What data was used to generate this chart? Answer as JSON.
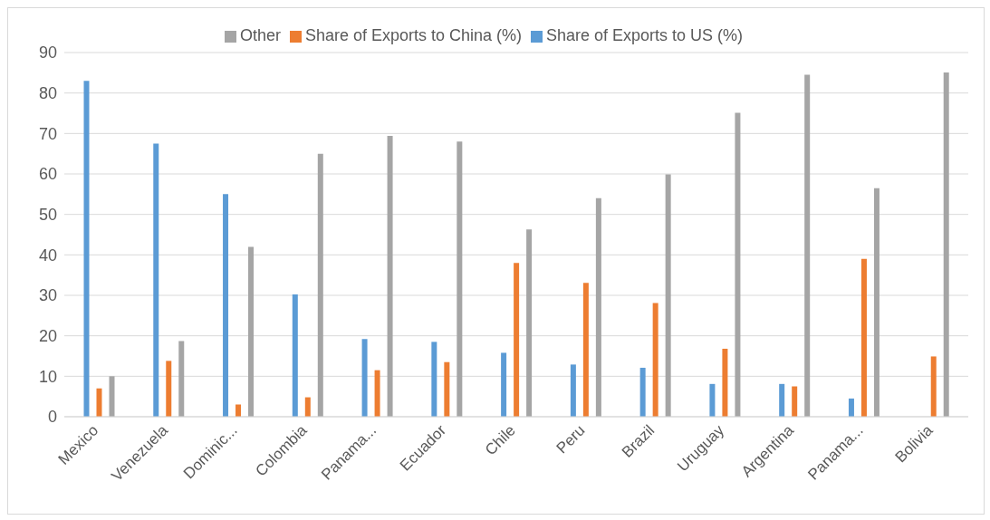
{
  "chart_data": {
    "type": "bar",
    "categories": [
      "Mexico",
      "Venezuela",
      "Dominic...",
      "Colombia",
      "Panama...",
      "Ecuador",
      "Chile",
      "Peru",
      "Brazil",
      "Uruguay",
      "Argentina",
      "Panama...",
      "Bolivia"
    ],
    "series": [
      {
        "name": "Share of Exports to US (%)",
        "color": "#5b9bd5",
        "values": [
          83,
          67.5,
          55,
          30.2,
          19.2,
          18.5,
          15.8,
          12.9,
          12.1,
          8.1,
          8.1,
          4.5,
          null
        ]
      },
      {
        "name": "Share of Exports to China (%)",
        "color": "#ed7d31",
        "values": [
          7,
          13.8,
          3,
          4.8,
          11.5,
          13.5,
          38,
          33.1,
          28.1,
          16.8,
          7.5,
          39,
          14.9
        ]
      },
      {
        "name": "Other",
        "color": "#a5a5a5",
        "values": [
          10,
          18.7,
          42,
          65,
          69.4,
          68,
          46.3,
          54,
          59.9,
          75.1,
          84.5,
          56.5,
          85.1
        ]
      }
    ],
    "ylim": [
      0,
      90
    ],
    "yticks": [
      0,
      10,
      20,
      30,
      40,
      50,
      60,
      70,
      80,
      90
    ],
    "grid": "y",
    "legend": "top"
  }
}
